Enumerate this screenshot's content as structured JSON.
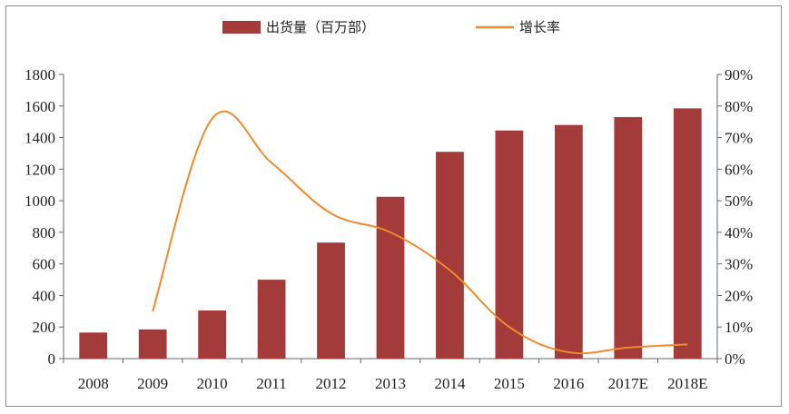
{
  "chart_data": {
    "type": "bar",
    "categories": [
      "2008",
      "2009",
      "2010",
      "2011",
      "2012",
      "2013",
      "2014",
      "2015",
      "2016",
      "2017E",
      "2018E"
    ],
    "series": [
      {
        "name": "出货量（百万部）",
        "type": "bar",
        "axis": "left",
        "color": "#A23B3A",
        "values": [
          165,
          185,
          305,
          500,
          735,
          1025,
          1310,
          1445,
          1480,
          1530,
          1585
        ]
      },
      {
        "name": "增长率",
        "type": "line",
        "axis": "right",
        "color": "#F08A2B",
        "values": [
          null,
          15,
          76,
          62,
          46,
          40,
          28,
          10,
          2,
          3.5,
          4.5
        ]
      }
    ],
    "y_left": {
      "lim": [
        0,
        1800
      ],
      "ticks": [
        "0",
        "200",
        "400",
        "600",
        "800",
        "1000",
        "1200",
        "1400",
        "1600",
        "1800"
      ]
    },
    "y_right": {
      "lim": [
        0,
        90
      ],
      "ticks": [
        "0%",
        "10%",
        "20%",
        "30%",
        "40%",
        "50%",
        "60%",
        "70%",
        "80%",
        "90%"
      ]
    },
    "legend": {
      "position": "top-center"
    },
    "grid": false
  }
}
